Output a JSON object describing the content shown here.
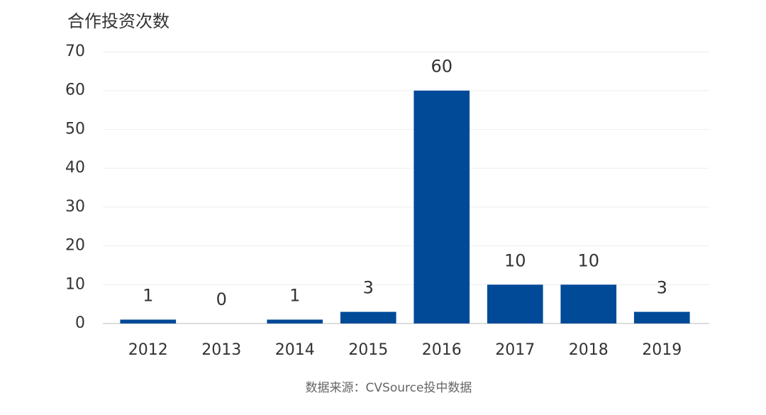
{
  "chart_data": {
    "type": "bar",
    "title": "合作投资次数",
    "source": "数据来源：CVSource投中数据",
    "categories": [
      "2012",
      "2013",
      "2014",
      "2015",
      "2016",
      "2017",
      "2018",
      "2019"
    ],
    "values": [
      1,
      0,
      1,
      3,
      60,
      10,
      10,
      3
    ],
    "color": "#004a98",
    "ylim": [
      0,
      70
    ],
    "yticks": [
      0,
      10,
      20,
      30,
      40,
      50,
      60,
      70
    ],
    "grid": true
  }
}
